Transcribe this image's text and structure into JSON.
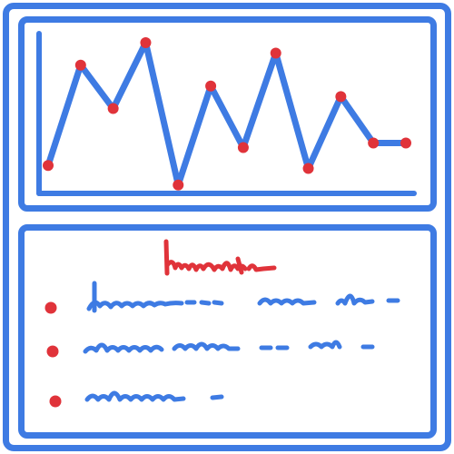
{
  "colors": {
    "frame": "#3e7be3",
    "line": "#3e7be3",
    "point": "#e0333a",
    "scribble_text": "#3e7be3",
    "scribble_heading": "#e0333a",
    "bullet": "#e0333a"
  },
  "chart_data": {
    "type": "line",
    "grid": false,
    "legend": "none",
    "x": [
      1,
      2,
      3,
      4,
      5,
      6,
      7,
      8,
      9,
      10,
      11,
      12
    ],
    "series": [
      {
        "values": [
          0.15,
          0.82,
          0.53,
          0.97,
          0.02,
          0.68,
          0.27,
          0.9,
          0.13,
          0.61,
          0.3,
          0.3
        ]
      }
    ],
    "ylim": [
      0,
      1
    ]
  },
  "text_panel": {
    "heading_icon": "scribbled-heading-icon",
    "bullet_icon": "bullet-dot-icon",
    "line_icon": "scribbled-text-line-icon",
    "lines": 3
  }
}
